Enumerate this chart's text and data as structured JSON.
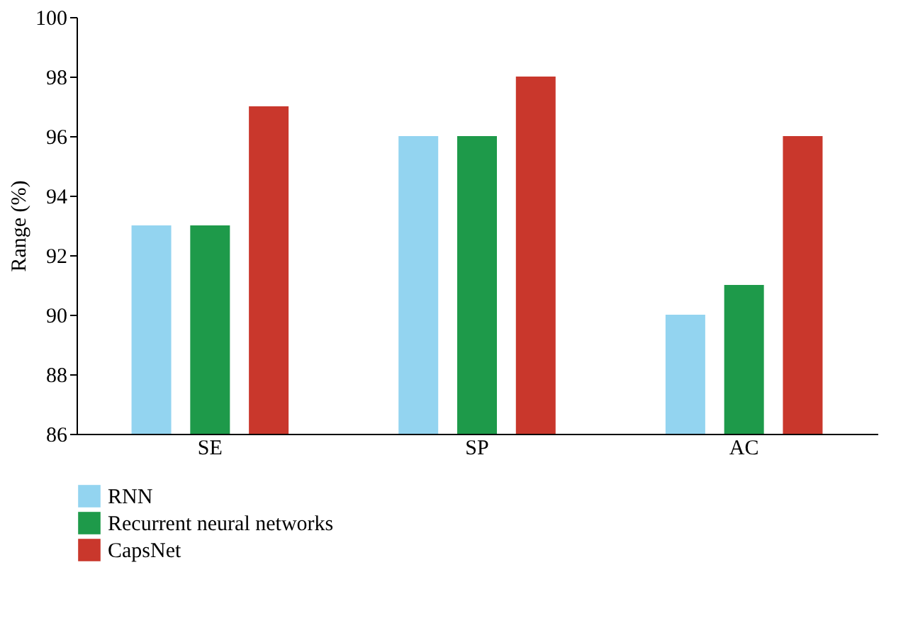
{
  "chart_data": {
    "type": "bar",
    "ylabel": "Range (%)",
    "categories": [
      "SE",
      "SP",
      "AC"
    ],
    "series": [
      {
        "name": "RNN",
        "color": "#93d4f0",
        "values": [
          93,
          96,
          90
        ]
      },
      {
        "name": "Recurrent neural networks",
        "color": "#1e9a4a",
        "values": [
          93,
          96,
          91
        ]
      },
      {
        "name": "CapsNet",
        "color": "#c9372c",
        "values": [
          97,
          98,
          96
        ]
      }
    ],
    "ylim": [
      86,
      100
    ],
    "yticks": [
      86,
      88,
      90,
      92,
      94,
      96,
      98,
      100
    ],
    "grid": false,
    "legend": "bottom"
  }
}
